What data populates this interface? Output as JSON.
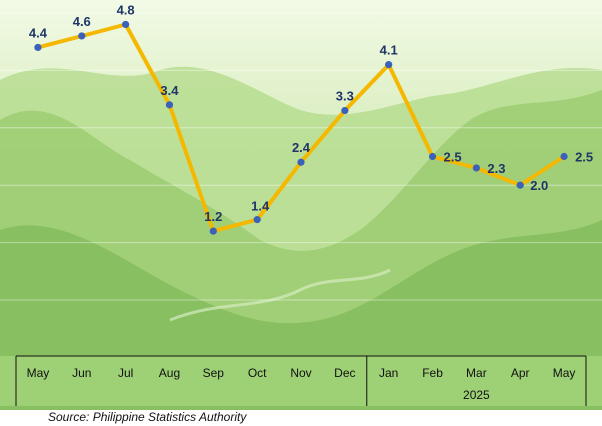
{
  "chart_data": {
    "type": "line",
    "categories": [
      "May",
      "Jun",
      "Jul",
      "Aug",
      "Sep",
      "Oct",
      "Nov",
      "Dec",
      "Jan",
      "Feb",
      "Mar",
      "Apr",
      "May"
    ],
    "values": [
      4.4,
      4.6,
      4.8,
      3.4,
      1.2,
      1.4,
      2.4,
      3.3,
      4.1,
      2.5,
      2.3,
      2.0,
      2.5
    ],
    "labels": [
      "4.4",
      "4.6",
      "4.8",
      "3.4",
      "1.2",
      "1.4",
      "2.4",
      "3.3",
      "4.1",
      "2.5",
      "2.3",
      "2.0",
      "2.5"
    ],
    "year_group_label": "2025",
    "line_color": "#F5B800",
    "marker_color": "#3A62B8",
    "label_color": "#1F3566",
    "grid": true
  },
  "source": "Source: Philippine Statistics Authority",
  "colors": {
    "sky": "#E9F6D4",
    "mountain_light": "#B9DE93",
    "mountain_mid": "#9CCD72",
    "mountain_dark": "#7FB95A",
    "axis_panel": "#A2D27A"
  }
}
